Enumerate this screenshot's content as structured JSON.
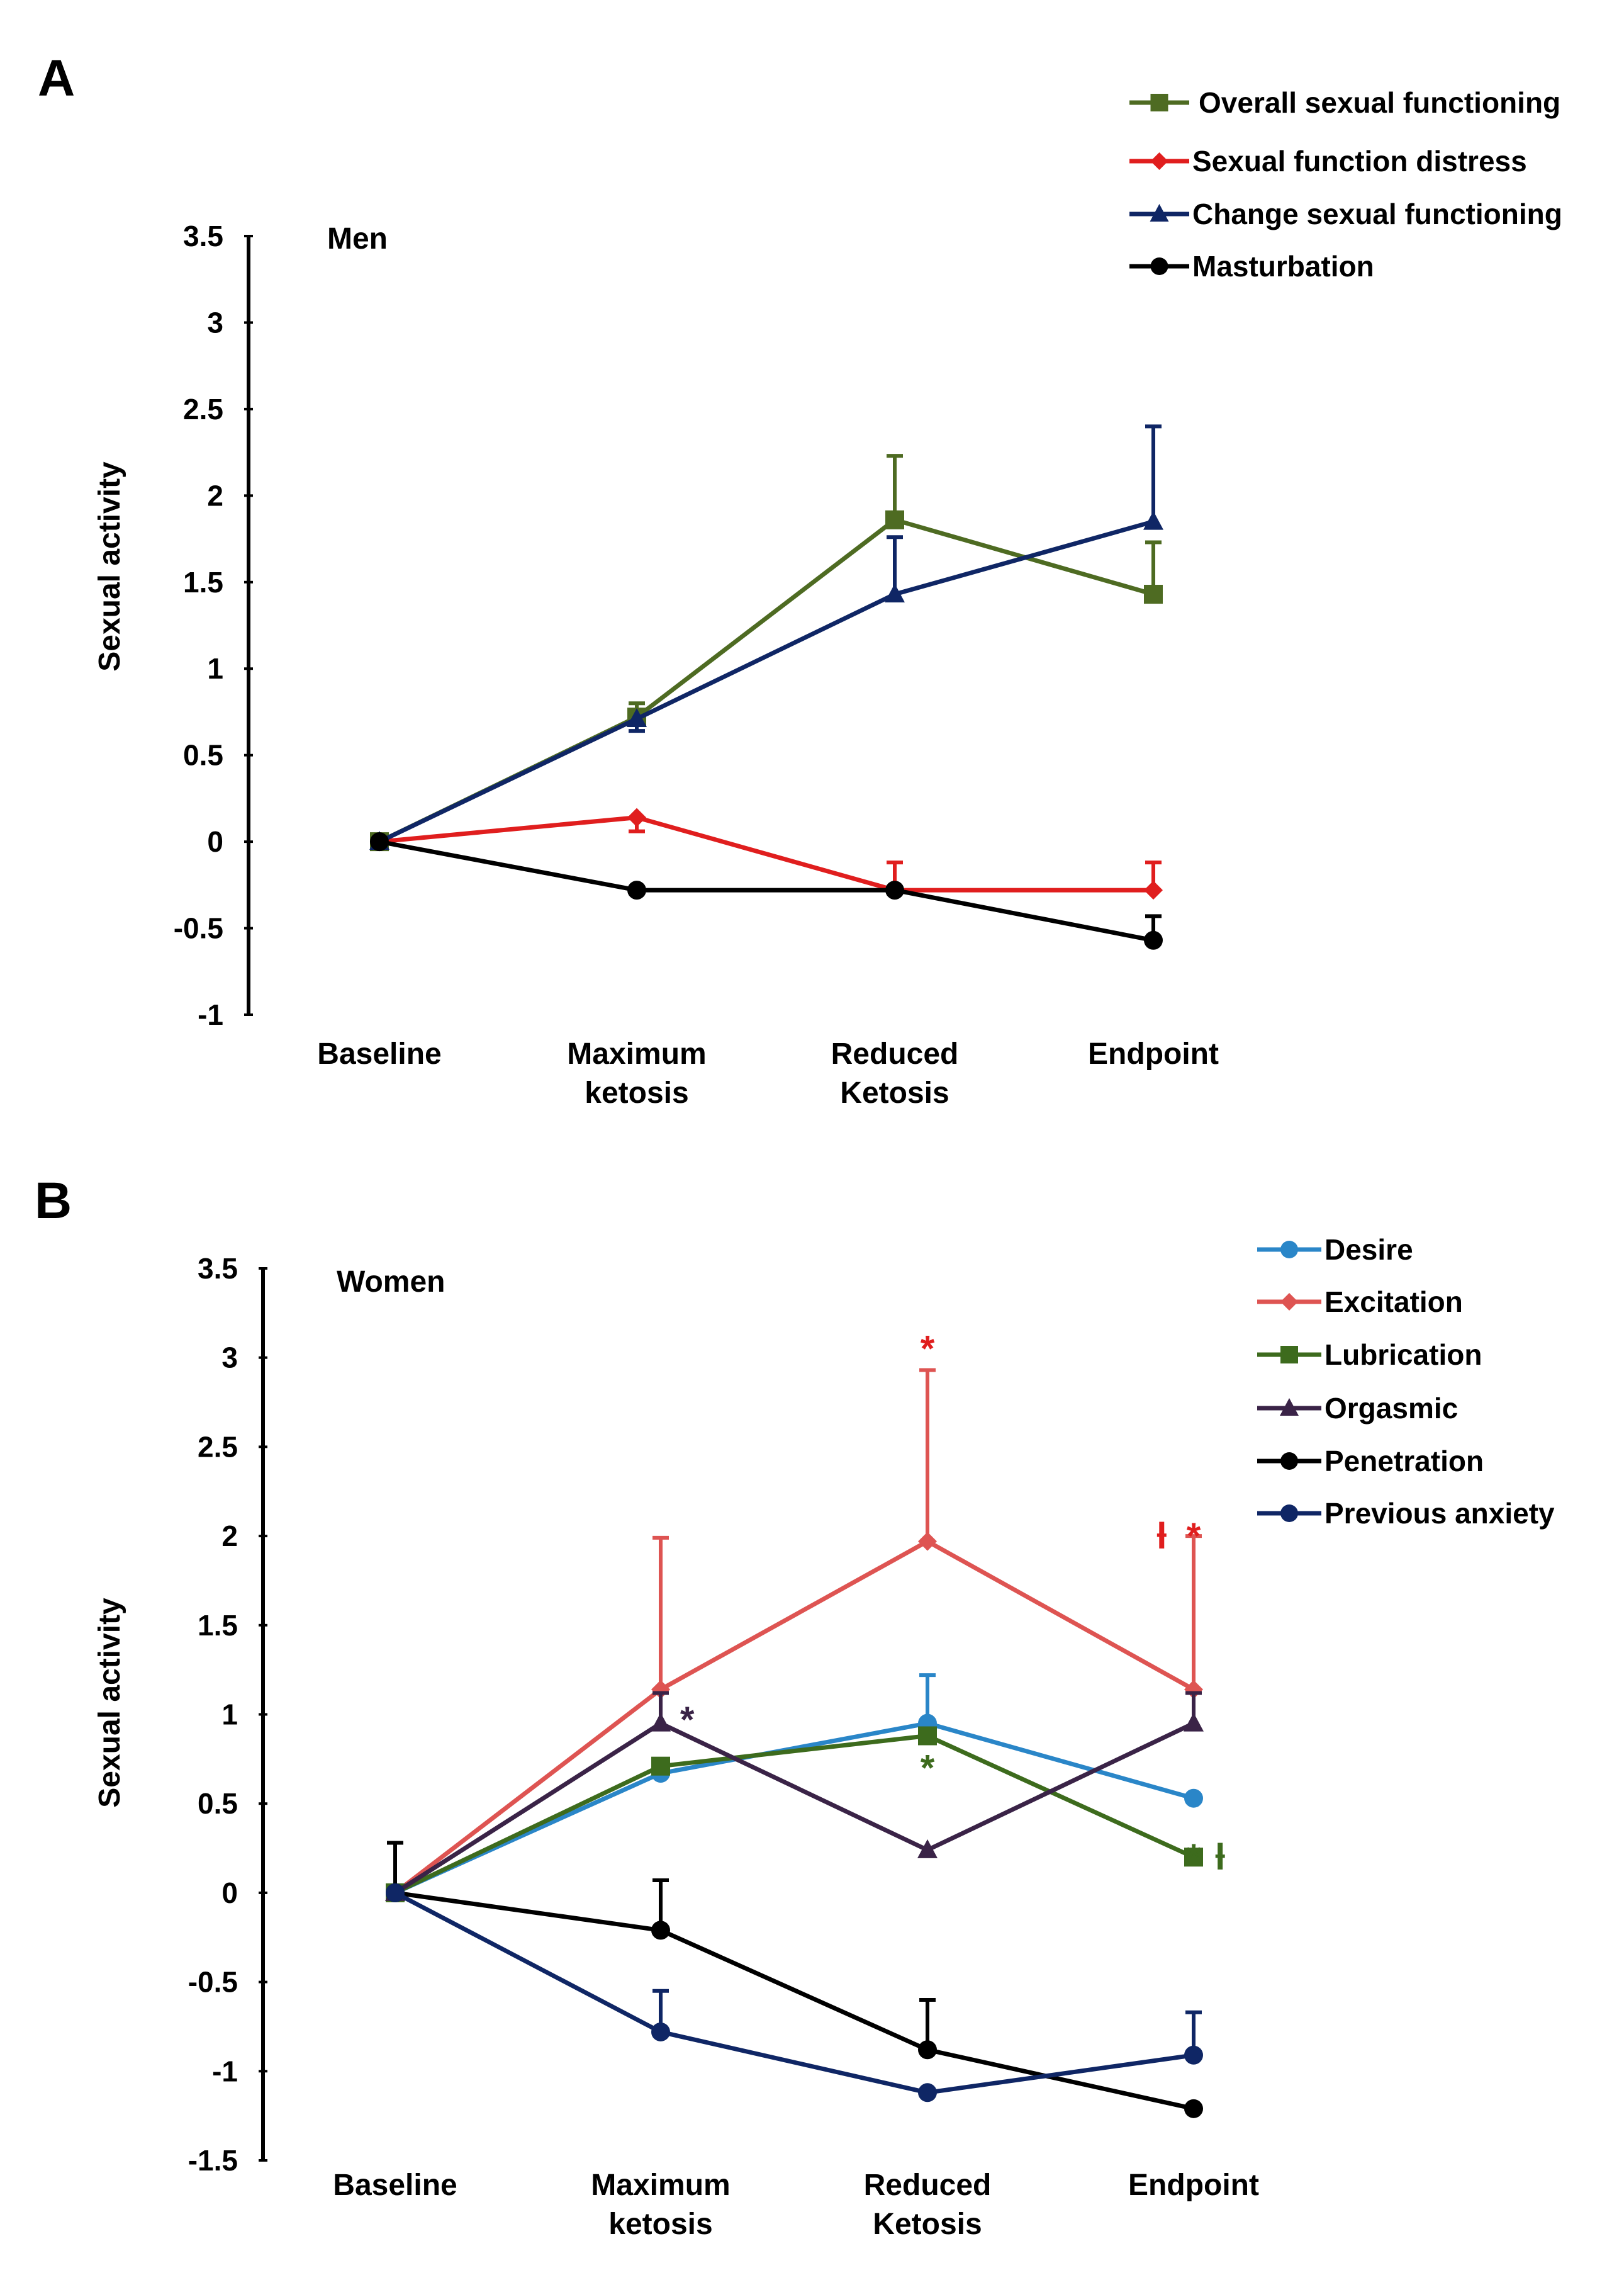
{
  "chart_data": [
    {
      "panel": "A",
      "type": "line",
      "title": "Men",
      "xlabel": "",
      "ylabel": "Sexual activity",
      "ylim": [
        -1,
        3.5
      ],
      "yticks": [
        "3.5",
        "3",
        "2.5",
        "2",
        "1.5",
        "1",
        "0.5",
        "0",
        "-0.5",
        "-1"
      ],
      "categories": [
        [
          "Baseline"
        ],
        [
          "Maximum",
          "ketosis"
        ],
        [
          "Reduced",
          "Ketosis"
        ],
        [
          "Endpoint"
        ]
      ],
      "legend_position": "top-right",
      "series": [
        {
          "name": "Overall sexual functioning",
          "color": "#4e6b22",
          "marker": "square",
          "values": [
            0,
            0.72,
            1.86,
            1.43
          ],
          "error_upper": [
            0,
            0.8,
            2.23,
            1.73
          ]
        },
        {
          "name": "Sexual function distress",
          "color": "#e01e1e",
          "marker": "diamond",
          "values": [
            0,
            0.14,
            -0.28,
            -0.28
          ],
          "error_upper": [
            0,
            0.14,
            -0.12,
            -0.12
          ],
          "error_lower": [
            0,
            0.06,
            -0.28,
            -0.28
          ]
        },
        {
          "name": "Change sexual functioning",
          "color": "#0f2665",
          "marker": "triangle",
          "values": [
            0,
            0.71,
            1.43,
            1.85
          ],
          "error_upper": [
            0,
            0.71,
            1.76,
            2.4
          ],
          "error_lower": [
            0,
            0.64,
            1.43,
            1.85
          ]
        },
        {
          "name": "Masturbation",
          "color": "#000000",
          "marker": "circle",
          "values": [
            0,
            -0.28,
            -0.28,
            -0.57
          ],
          "error_upper": [
            0,
            -0.28,
            -0.28,
            -0.43
          ]
        }
      ],
      "annotations": []
    },
    {
      "panel": "B",
      "type": "line",
      "title": "Women",
      "xlabel": "",
      "ylabel": "Sexual activity",
      "ylim": [
        -1.5,
        3.5
      ],
      "yticks": [
        "3.5",
        "3",
        "2.5",
        "2",
        "1.5",
        "1",
        "0.5",
        "0",
        "-0.5",
        "-1",
        "-1.5"
      ],
      "categories": [
        [
          "Baseline"
        ],
        [
          "Maximum",
          "ketosis"
        ],
        [
          "Reduced",
          "Ketosis"
        ],
        [
          "Endpoint"
        ]
      ],
      "legend_position": "top-right",
      "series": [
        {
          "name": "Desire",
          "color": "#2a86c8",
          "marker": "circle",
          "values": [
            0,
            0.67,
            0.95,
            0.53
          ],
          "error_upper": [
            0,
            0.67,
            1.22,
            0.53
          ]
        },
        {
          "name": "Excitation",
          "color": "#de5452",
          "marker": "diamond",
          "values": [
            0,
            1.14,
            1.97,
            1.14
          ],
          "error_upper": [
            0,
            1.99,
            2.93,
            2.0
          ]
        },
        {
          "name": "Lubrication",
          "color": "#3d6b1d",
          "marker": "square",
          "values": [
            0,
            0.71,
            0.88,
            0.2
          ],
          "error_upper": [
            0,
            0.71,
            0.88,
            0.2
          ]
        },
        {
          "name": "Orgasmic",
          "color": "#3a2347",
          "marker": "triangle",
          "values": [
            0,
            0.95,
            0.24,
            0.95
          ],
          "error_upper": [
            0,
            1.12,
            0.24,
            1.12
          ]
        },
        {
          "name": "Penetration",
          "color": "#000000",
          "marker": "circle",
          "values": [
            0,
            -0.21,
            -0.88,
            -1.21
          ],
          "error_upper": [
            0.28,
            0.07,
            -0.6,
            -1.21
          ]
        },
        {
          "name": "Previous anxiety",
          "color": "#0f2665",
          "marker": "circle",
          "values": [
            0,
            -0.78,
            -1.12,
            -0.91
          ],
          "error_upper": [
            0,
            -0.55,
            -1.12,
            -0.67
          ]
        }
      ],
      "annotations": [
        {
          "text": "*",
          "color": "#3a2347",
          "category": 1,
          "y": 0.97,
          "dx": 0.1
        },
        {
          "text": "*",
          "color": "#e01e1e",
          "category": 2,
          "y": 3.05,
          "dx": 0
        },
        {
          "text": "*",
          "color": "#3d6b1d",
          "category": 2,
          "y": 0.7,
          "dx": 0
        },
        {
          "text": "ƚ",
          "color": "#e01e1e",
          "category": 3,
          "y": 2.0,
          "dx": -0.12
        },
        {
          "text": "*",
          "color": "#e01e1e",
          "category": 3,
          "y": 2.0,
          "dx": 0
        },
        {
          "text": "*",
          "color": "#3d6b1d",
          "category": 3,
          "y": 0.2,
          "dx": 0
        },
        {
          "text": "ƚ",
          "color": "#3d6b1d",
          "category": 3,
          "y": 0.2,
          "dx": 0.1
        }
      ]
    }
  ]
}
